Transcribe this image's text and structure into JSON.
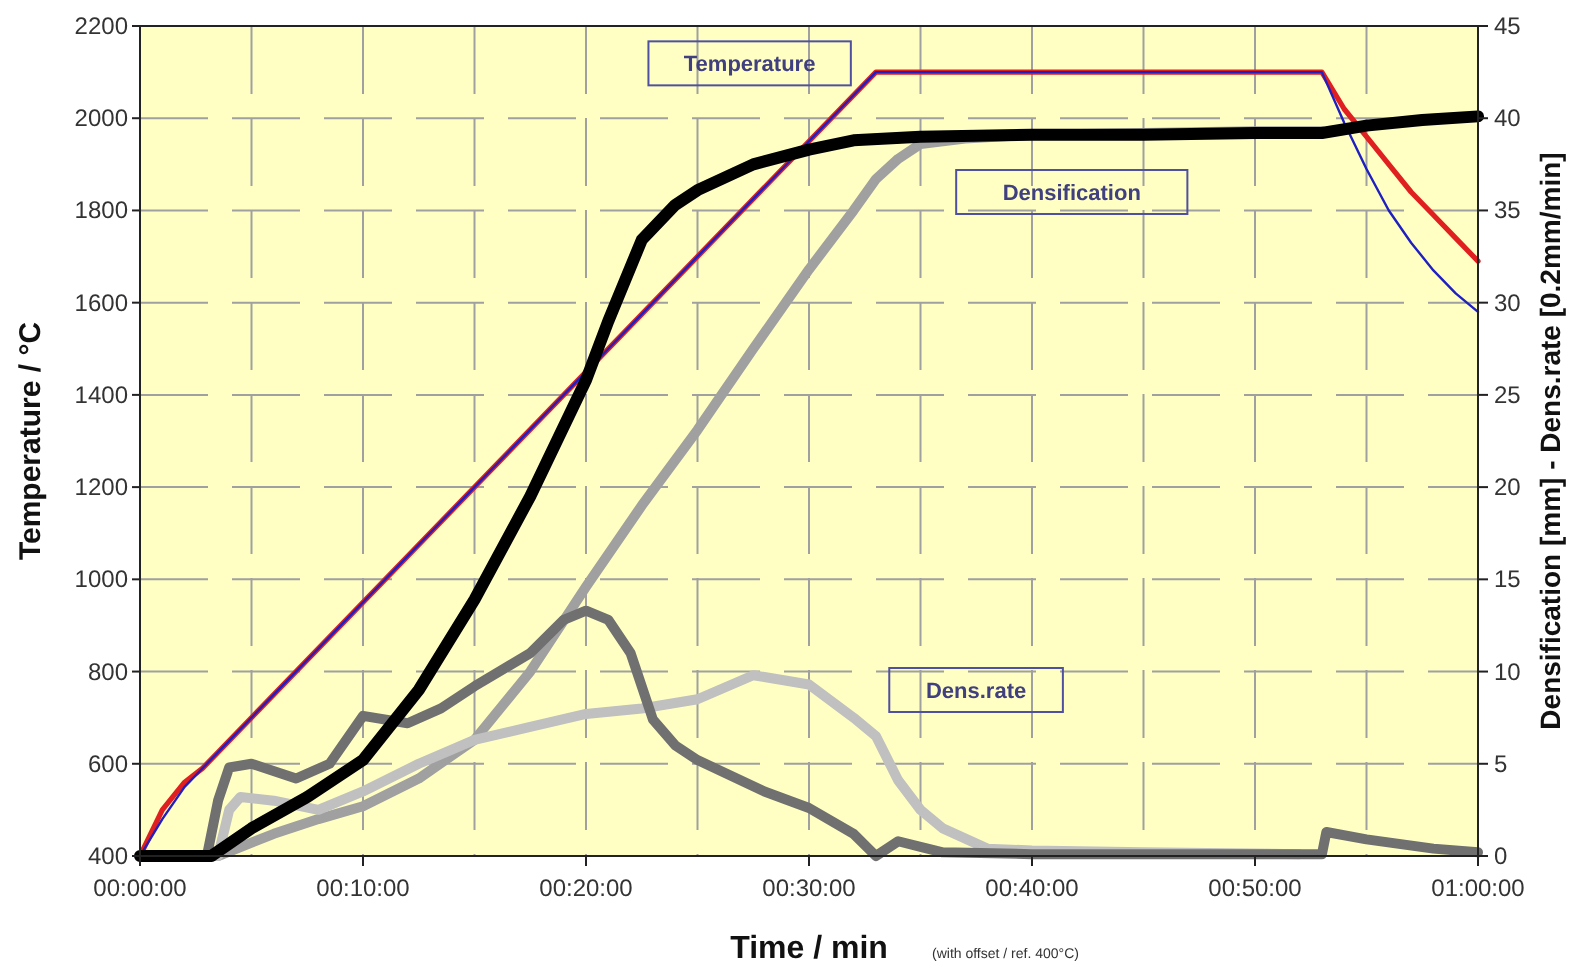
{
  "chart_data": {
    "type": "line",
    "xlabel": "Time / min",
    "ylabel": "Temperature / °C",
    "y2label": "Densification [mm]  -  Dens.rate [0.2mm/min]",
    "annotations": [
      "Temperature",
      "Densification",
      "Dens.rate",
      "(with offset / ref. 400°C)"
    ],
    "xlim": [
      0,
      60
    ],
    "xticks": [
      {
        "value": 0,
        "label": "00:00:00"
      },
      {
        "value": 10,
        "label": "00:10:00"
      },
      {
        "value": 20,
        "label": "00:20:00"
      },
      {
        "value": 30,
        "label": "00:30:00"
      },
      {
        "value": 40,
        "label": "00:40:00"
      },
      {
        "value": 50,
        "label": "00:50:00"
      },
      {
        "value": 60,
        "label": "01:00:00"
      }
    ],
    "ylim": [
      400,
      2200
    ],
    "yticks": [
      400,
      600,
      800,
      1000,
      1200,
      1400,
      1600,
      1800,
      2000,
      2200
    ],
    "y2lim": [
      0,
      45
    ],
    "y2ticks": [
      0,
      5,
      10,
      15,
      20,
      25,
      30,
      35,
      40,
      45
    ],
    "grid": true,
    "line_style": "solid",
    "series": [
      {
        "color": "#e02020",
        "x": [
          0,
          1,
          2,
          2.8,
          33,
          53,
          54,
          55,
          56,
          57,
          58,
          59,
          60
        ],
        "values": [
          400,
          500,
          560,
          590,
          2100,
          2100,
          2020,
          1960,
          1900,
          1840,
          1790,
          1740,
          1690
        ]
      },
      {
        "color": "#2020c0",
        "x": [
          0,
          1,
          2,
          2.8,
          33,
          33.5,
          53,
          54,
          55,
          56,
          57,
          58,
          59,
          60
        ],
        "values": [
          400,
          480,
          550,
          590,
          2100,
          2100,
          2100,
          1990,
          1890,
          1800,
          1730,
          1670,
          1620,
          1580
        ]
      },
      {
        "color": "#a0a0a0",
        "axis": "y2",
        "x": [
          0,
          3.5,
          6,
          8,
          10,
          12.5,
          15,
          17.5,
          20,
          22.5,
          25,
          27.5,
          30,
          32,
          33,
          34,
          35,
          37,
          40,
          45,
          50,
          53
        ],
        "values": [
          0,
          0,
          1.2,
          2,
          2.7,
          4.2,
          6.3,
          10,
          14.6,
          19,
          23.1,
          27.5,
          31.8,
          35,
          36.7,
          37.8,
          38.6,
          38.9,
          39.1,
          39.2,
          39.3,
          39.3
        ]
      },
      {
        "color": "#c0c0c0",
        "axis": "y2",
        "x": [
          3.5,
          4,
          4.5,
          6,
          8,
          10,
          12.5,
          15,
          17.5,
          20,
          22.5,
          25,
          27.5,
          29,
          30,
          32,
          33,
          34,
          35,
          36,
          38,
          40,
          45,
          52
        ],
        "values": [
          0,
          2.5,
          3.2,
          3,
          2.5,
          3.5,
          5,
          6.3,
          7,
          7.7,
          8,
          8.5,
          9.8,
          9.5,
          9.3,
          7.5,
          6.5,
          4.1,
          2.5,
          1.5,
          0.4,
          0.3,
          0.2,
          0.1
        ]
      },
      {
        "color": "#707070",
        "axis": "y2",
        "x": [
          0,
          3,
          3.5,
          4,
          5,
          7,
          8.5,
          10,
          12,
          13.5,
          15,
          17.5,
          19,
          20,
          21,
          22,
          23,
          24,
          25,
          28,
          30,
          32,
          33,
          34,
          35,
          36,
          40,
          45,
          53,
          53.2,
          55,
          58,
          60
        ],
        "values": [
          0,
          0,
          3,
          4.8,
          5,
          4.2,
          5,
          7.6,
          7.2,
          8,
          9.2,
          11,
          12.8,
          13.3,
          12.8,
          11,
          7.4,
          6,
          5.2,
          3.5,
          2.6,
          1.2,
          0,
          0.8,
          0.5,
          0.2,
          0.1,
          0.1,
          0.1,
          1.3,
          0.9,
          0.4,
          0.2
        ]
      },
      {
        "color": "#000000",
        "axis": "y2",
        "x": [
          0,
          3.2,
          5,
          7.5,
          10,
          12.5,
          15,
          17.5,
          20,
          21,
          22.5,
          24,
          25,
          27.5,
          30,
          32,
          35,
          40,
          45,
          50,
          53,
          55,
          57.5,
          60
        ],
        "values": [
          0,
          0,
          1.5,
          3.2,
          5.2,
          9,
          13.9,
          19.5,
          25.8,
          29,
          33.4,
          35.3,
          36.1,
          37.5,
          38.3,
          38.8,
          39,
          39.1,
          39.1,
          39.2,
          39.2,
          39.6,
          39.9,
          40.1
        ]
      }
    ]
  }
}
